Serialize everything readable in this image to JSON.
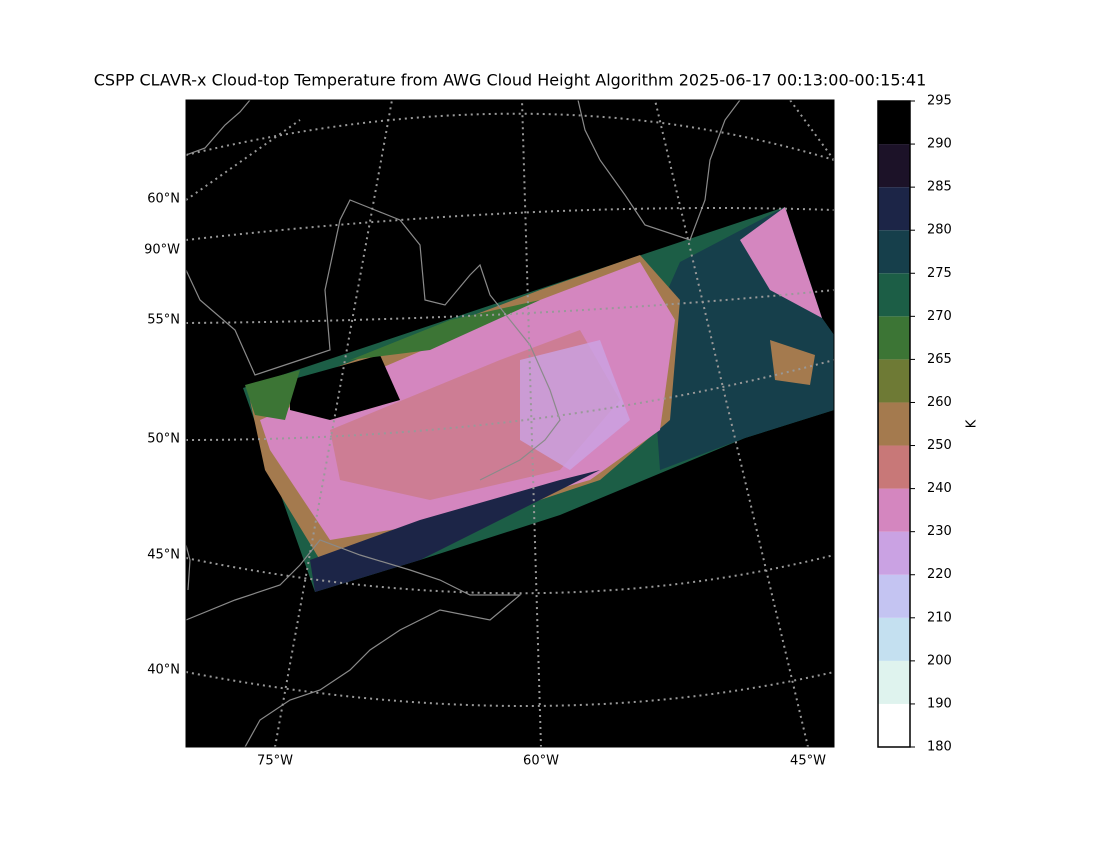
{
  "title": "CSPP CLAVR-x Cloud-top Temperature from AWG Cloud Height Algorithm 2025-06-17 00:13:00-00:15:41",
  "map": {
    "lat_labels": [
      "60°N",
      "90°W",
      "55°N",
      "50°N",
      "45°N",
      "40°N"
    ],
    "lon_labels": [
      "75°W",
      "60°W",
      "45°W"
    ]
  },
  "colorbar": {
    "label": "K",
    "ticks": [
      180,
      190,
      200,
      210,
      220,
      230,
      240,
      250,
      260,
      265,
      270,
      275,
      280,
      285,
      290,
      295
    ],
    "colors": [
      "#ffffff",
      "#dff3ee",
      "#c4e0f0",
      "#c4c4f2",
      "#caa2e3",
      "#d486bf",
      "#c87878",
      "#a47a4e",
      "#6e7a35",
      "#3c7535",
      "#1c5e46",
      "#163f4b",
      "#1c2547",
      "#1c1228",
      "#000000"
    ]
  }
}
